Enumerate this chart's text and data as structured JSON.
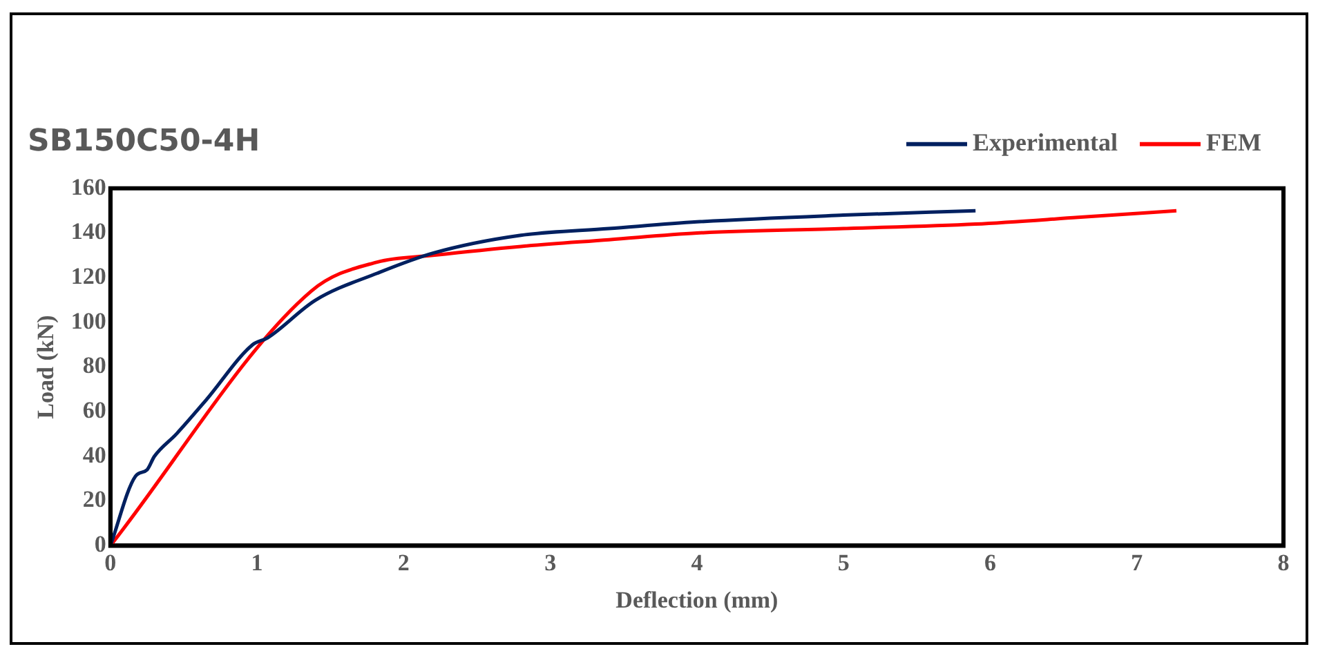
{
  "chart_data": {
    "type": "line",
    "title": "SB150C50-4H",
    "xlabel": "Deflection (mm)",
    "ylabel": "Load (kN)",
    "xlim": [
      0,
      8
    ],
    "xticks": [
      0,
      1,
      2,
      3,
      4,
      5,
      6,
      7,
      8
    ],
    "ylim": [
      0,
      160
    ],
    "yticks": [
      0,
      20,
      40,
      60,
      80,
      100,
      120,
      140,
      160
    ],
    "grid": false,
    "legend": "top right",
    "marker": "none",
    "line_style": "solid",
    "series": [
      {
        "name": "Experimental",
        "color": "#002060",
        "x": [
          0,
          0.17,
          0.25,
          0.3,
          0.45,
          0.65,
          0.97,
          1.07,
          1.4,
          1.82,
          2.2,
          2.8,
          3.4,
          4,
          5,
          5.9
        ],
        "values": [
          0,
          31,
          34,
          40,
          50,
          65,
          90,
          93,
          110,
          122,
          131,
          139,
          142,
          145,
          148,
          150
        ]
      },
      {
        "name": "FEM",
        "color": "#ff0000",
        "x": [
          0,
          1.37,
          1.82,
          2.2,
          2.8,
          3.4,
          4,
          5,
          5.9,
          6.6,
          7.27
        ],
        "values": [
          0,
          114,
          127,
          130,
          134,
          137,
          140,
          142,
          144,
          147,
          150
        ]
      }
    ]
  }
}
